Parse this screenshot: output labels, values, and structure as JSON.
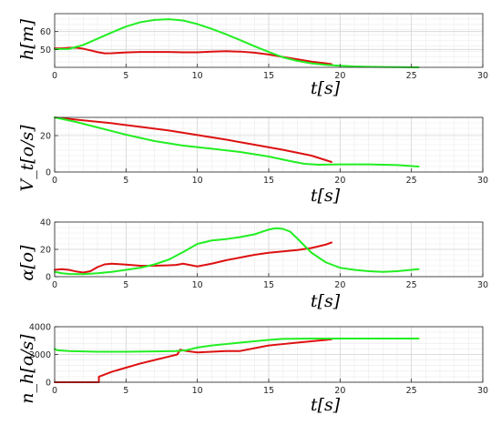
{
  "chart_data": [
    {
      "type": "line",
      "ylabel": "h[m]",
      "xlabel": "t[s]",
      "xlim": [
        0,
        30
      ],
      "ylim": [
        40,
        70
      ],
      "x_ticks": [
        0,
        5,
        10,
        15,
        20,
        25,
        30
      ],
      "y_ticks": [
        50,
        60
      ],
      "grid": true,
      "legend": "none",
      "series": [
        {
          "color": "#dd1111",
          "points": [
            [
              0,
              50.6
            ],
            [
              0.5,
              50.6
            ],
            [
              1.0,
              50.9
            ],
            [
              1.5,
              51.0
            ],
            [
              2.0,
              50.4
            ],
            [
              2.5,
              49.5
            ],
            [
              3.0,
              48.5
            ],
            [
              3.5,
              47.8
            ],
            [
              4.0,
              47.9
            ],
            [
              5.0,
              48.3
            ],
            [
              6.0,
              48.6
            ],
            [
              7.0,
              48.6
            ],
            [
              8.0,
              48.6
            ],
            [
              9.0,
              48.4
            ],
            [
              10.0,
              48.4
            ],
            [
              11.0,
              48.8
            ],
            [
              12.0,
              49.0
            ],
            [
              13.0,
              48.8
            ],
            [
              14.0,
              48.2
            ],
            [
              15.0,
              47.2
            ],
            [
              16.0,
              45.8
            ],
            [
              17.0,
              44.5
            ],
            [
              18.0,
              43.2
            ],
            [
              19.0,
              42.2
            ],
            [
              19.4,
              41.8
            ]
          ]
        },
        {
          "color": "#22ee22",
          "points": [
            [
              0,
              50.2
            ],
            [
              1.0,
              50.3
            ],
            [
              2.0,
              52.5
            ],
            [
              3.0,
              56.0
            ],
            [
              4.0,
              59.5
            ],
            [
              5.0,
              62.8
            ],
            [
              6.0,
              65.2
            ],
            [
              7.0,
              66.5
            ],
            [
              8.0,
              66.9
            ],
            [
              9.0,
              66.2
            ],
            [
              10.0,
              64.2
            ],
            [
              11.0,
              61.5
            ],
            [
              12.0,
              58.5
            ],
            [
              13.0,
              55.2
            ],
            [
              14.0,
              51.8
            ],
            [
              15.0,
              48.6
            ],
            [
              16.0,
              45.6
            ],
            [
              17.0,
              43.6
            ],
            [
              18.0,
              42.2
            ],
            [
              19.0,
              41.4
            ],
            [
              20.0,
              40.9
            ],
            [
              21.0,
              40.5
            ],
            [
              22.0,
              40.3
            ],
            [
              23.0,
              40.2
            ],
            [
              24.0,
              40.1
            ],
            [
              25.5,
              40.0
            ]
          ]
        }
      ]
    },
    {
      "type": "line",
      "ylabel": "V_t[o/s]",
      "xlabel": "t[s]",
      "xlim": [
        0,
        30
      ],
      "ylim": [
        0,
        30
      ],
      "x_ticks": [
        0,
        5,
        10,
        15,
        20,
        25,
        30
      ],
      "y_ticks": [
        0,
        20
      ],
      "grid": true,
      "legend": "none",
      "series": [
        {
          "color": "#dd1111",
          "points": [
            [
              0,
              30
            ],
            [
              2.0,
              28.4
            ],
            [
              4.0,
              26.8
            ],
            [
              6.0,
              24.8
            ],
            [
              8.0,
              22.8
            ],
            [
              10.0,
              20.3
            ],
            [
              12.0,
              17.8
            ],
            [
              14.0,
              15.0
            ],
            [
              16.0,
              12.2
            ],
            [
              18.0,
              9.0
            ],
            [
              19.4,
              5.5
            ]
          ]
        },
        {
          "color": "#22ee22",
          "points": [
            [
              0,
              30
            ],
            [
              1.5,
              27.5
            ],
            [
              3.0,
              24.5
            ],
            [
              5.0,
              20.5
            ],
            [
              7.0,
              17.0
            ],
            [
              9.0,
              14.5
            ],
            [
              11.0,
              12.8
            ],
            [
              13.0,
              11.0
            ],
            [
              15.0,
              8.5
            ],
            [
              16.5,
              6.0
            ],
            [
              17.5,
              4.5
            ],
            [
              18.5,
              4.0
            ],
            [
              20.0,
              4.2
            ],
            [
              22.0,
              4.2
            ],
            [
              24.0,
              3.8
            ],
            [
              25.5,
              3.0
            ]
          ]
        }
      ]
    },
    {
      "type": "line",
      "ylabel": "α[o]",
      "xlabel": "t[s]",
      "xlim": [
        0,
        30
      ],
      "ylim": [
        0,
        40
      ],
      "x_ticks": [
        0,
        5,
        10,
        15,
        20,
        25,
        30
      ],
      "y_ticks": [
        0,
        20,
        40
      ],
      "grid": true,
      "legend": "none",
      "series": [
        {
          "color": "#dd1111",
          "points": [
            [
              0,
              5.0
            ],
            [
              0.5,
              5.5
            ],
            [
              1.0,
              5.0
            ],
            [
              1.5,
              3.8
            ],
            [
              2.0,
              3.0
            ],
            [
              2.5,
              4.0
            ],
            [
              3.0,
              7.0
            ],
            [
              3.5,
              9.0
            ],
            [
              4.0,
              9.5
            ],
            [
              5.0,
              8.8
            ],
            [
              6.0,
              8.0
            ],
            [
              7.0,
              8.0
            ],
            [
              8.0,
              8.3
            ],
            [
              8.5,
              8.6
            ],
            [
              9.0,
              9.5
            ],
            [
              9.5,
              8.5
            ],
            [
              10.0,
              7.5
            ],
            [
              11.0,
              9.5
            ],
            [
              12.0,
              12.0
            ],
            [
              13.0,
              14.0
            ],
            [
              14.0,
              16.0
            ],
            [
              15.0,
              17.5
            ],
            [
              16.0,
              18.5
            ],
            [
              17.0,
              19.5
            ],
            [
              18.0,
              21.0
            ],
            [
              19.0,
              23.5
            ],
            [
              19.4,
              25.0
            ]
          ]
        },
        {
          "color": "#22ee22",
          "points": [
            [
              0,
              3.5
            ],
            [
              0.5,
              2.5
            ],
            [
              1.0,
              2.0
            ],
            [
              2.0,
              1.8
            ],
            [
              3.0,
              2.5
            ],
            [
              4.0,
              3.5
            ],
            [
              5.0,
              5.0
            ],
            [
              6.0,
              6.5
            ],
            [
              7.0,
              9.0
            ],
            [
              8.0,
              12.5
            ],
            [
              9.0,
              18.0
            ],
            [
              10.0,
              24.0
            ],
            [
              11.0,
              26.5
            ],
            [
              12.0,
              27.5
            ],
            [
              13.0,
              29.0
            ],
            [
              14.0,
              31.0
            ],
            [
              15.0,
              34.5
            ],
            [
              15.5,
              35.5
            ],
            [
              16.0,
              35.0
            ],
            [
              16.5,
              33.0
            ],
            [
              17.0,
              28.0
            ],
            [
              18.0,
              17.5
            ],
            [
              19.0,
              10.5
            ],
            [
              20.0,
              6.5
            ],
            [
              21.0,
              5.0
            ],
            [
              22.0,
              4.0
            ],
            [
              23.0,
              3.5
            ],
            [
              24.0,
              4.0
            ],
            [
              25.0,
              5.0
            ],
            [
              25.5,
              5.5
            ]
          ]
        }
      ]
    },
    {
      "type": "line",
      "ylabel": "n_h[o/s]",
      "xlabel": "t[s]",
      "xlim": [
        0,
        30
      ],
      "ylim": [
        0,
        4000
      ],
      "x_ticks": [
        0,
        5,
        10,
        15,
        20,
        25,
        30
      ],
      "y_ticks": [
        0,
        2000,
        4000
      ],
      "grid": true,
      "legend": "none",
      "series": [
        {
          "color": "#dd1111",
          "points": [
            [
              0,
              0
            ],
            [
              3.1,
              0
            ],
            [
              3.1,
              400
            ],
            [
              4.0,
              750
            ],
            [
              5.0,
              1050
            ],
            [
              6.0,
              1350
            ],
            [
              7.0,
              1600
            ],
            [
              8.0,
              1850
            ],
            [
              8.6,
              2000
            ],
            [
              8.8,
              2350
            ],
            [
              9.2,
              2250
            ],
            [
              10.0,
              2150
            ],
            [
              11.0,
              2200
            ],
            [
              12.0,
              2250
            ],
            [
              13.0,
              2250
            ],
            [
              14.0,
              2450
            ],
            [
              15.0,
              2650
            ],
            [
              16.0,
              2750
            ],
            [
              17.0,
              2850
            ],
            [
              18.0,
              2950
            ],
            [
              19.0,
              3050
            ],
            [
              19.4,
              3100
            ]
          ]
        },
        {
          "color": "#22ee22",
          "points": [
            [
              0,
              2400
            ],
            [
              0.2,
              2300
            ],
            [
              1.0,
              2250
            ],
            [
              3.0,
              2200
            ],
            [
              5.0,
              2200
            ],
            [
              7.0,
              2220
            ],
            [
              8.5,
              2250
            ],
            [
              9.2,
              2300
            ],
            [
              10.0,
              2500
            ],
            [
              11.0,
              2650
            ],
            [
              12.0,
              2750
            ],
            [
              13.0,
              2850
            ],
            [
              14.0,
              2950
            ],
            [
              15.0,
              3050
            ],
            [
              16.0,
              3120
            ],
            [
              18.0,
              3150
            ],
            [
              20.0,
              3150
            ],
            [
              22.0,
              3150
            ],
            [
              24.0,
              3150
            ],
            [
              25.5,
              3150
            ]
          ]
        }
      ]
    }
  ]
}
